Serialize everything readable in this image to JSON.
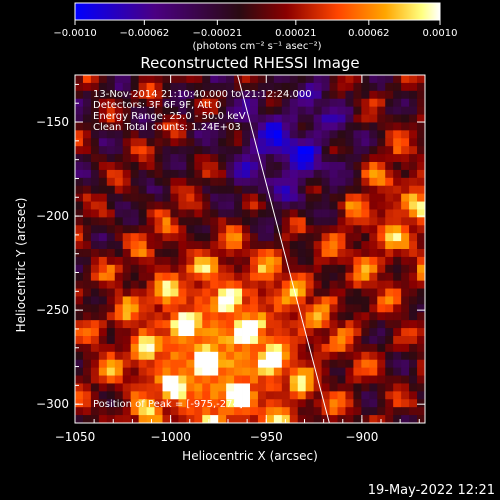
{
  "chart_data": {
    "type": "heatmap",
    "title": "Reconstructed RHESSI Image",
    "xlabel": "Heliocentric X (arcsec)",
    "ylabel": "Heliocentric Y (arcsec)",
    "x_ticks": [
      -1050,
      -1000,
      -950,
      -900
    ],
    "y_ticks": [
      -150,
      -200,
      -250,
      -300
    ],
    "xlim": [
      -1050,
      -867
    ],
    "ylim": [
      -310,
      -125
    ],
    "colorbar": {
      "label": "(photons cm⁻² s⁻¹ asec⁻²)",
      "tick_labels": [
        "−0.0010",
        "−0.00062",
        "−0.00021",
        "0.00021",
        "0.00062",
        "0.0010"
      ],
      "range": [
        -0.001,
        0.001
      ],
      "colors": [
        "#0000ff",
        "#4b0082",
        "#2a0a12",
        "#8b0000",
        "#ff4500",
        "#ffa500",
        "#ffff80",
        "#ffffff"
      ]
    },
    "annotations": [
      "13-Nov-2014 21:10:40.000 to 21:12:24.000",
      "Detectors: 3F 6F 9F, Att 0",
      "Energy Range: 25.0 - 50.0 keV",
      "Clean      Total counts: 1.24E+03"
    ],
    "peak_label": "Position of Peak = [-975,-274]",
    "peak": {
      "x": -975,
      "y": -274
    },
    "limb_line": [
      {
        "x": -965,
        "y": -125
      },
      {
        "x": -917,
        "y": -310
      }
    ],
    "grid": false
  },
  "footer": {
    "timestamp": "19-May-2022 12:21"
  }
}
